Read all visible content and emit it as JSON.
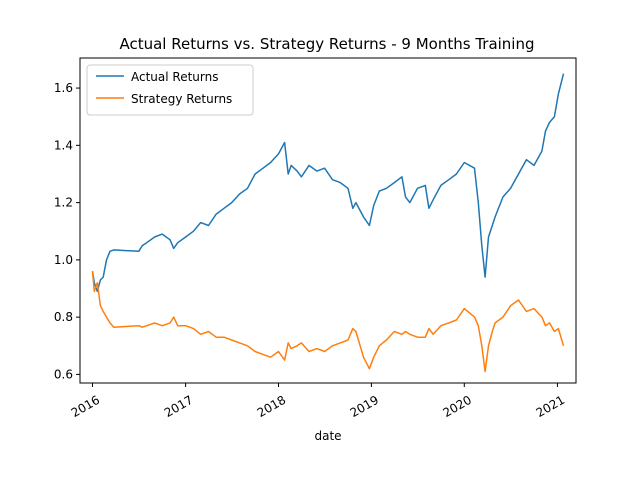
{
  "chart_data": {
    "type": "line",
    "title": "Actual Returns vs. Strategy Returns - 9 Months Training",
    "xlabel": "date",
    "ylabel": "",
    "x_ticks": [
      "2016",
      "2017",
      "2018",
      "2019",
      "2020",
      "2021"
    ],
    "y_ticks": [
      "0.6",
      "0.8",
      "1.0",
      "1.2",
      "1.4",
      "1.6"
    ],
    "xlim": [
      "2015-11-13",
      "2021-03-15"
    ],
    "ylim": [
      0.57,
      1.705
    ],
    "grid": false,
    "legend_position": "top-left",
    "series": [
      {
        "name": "Actual Returns",
        "color": "#1f77b4",
        "points": [
          [
            "2016-01-01",
            0.96
          ],
          [
            "2016-01-08",
            0.92
          ],
          [
            "2016-01-20",
            0.89
          ],
          [
            "2016-02-01",
            0.93
          ],
          [
            "2016-02-12",
            0.94
          ],
          [
            "2016-02-25",
            1.0
          ],
          [
            "2016-03-10",
            1.03
          ],
          [
            "2016-03-25",
            1.035
          ],
          [
            "2016-07-01",
            1.03
          ],
          [
            "2016-07-15",
            1.05
          ],
          [
            "2016-08-01",
            1.06
          ],
          [
            "2016-09-01",
            1.08
          ],
          [
            "2016-10-01",
            1.09
          ],
          [
            "2016-11-01",
            1.07
          ],
          [
            "2016-11-15",
            1.04
          ],
          [
            "2016-12-01",
            1.06
          ],
          [
            "2017-01-01",
            1.08
          ],
          [
            "2017-02-01",
            1.1
          ],
          [
            "2017-03-01",
            1.13
          ],
          [
            "2017-04-01",
            1.12
          ],
          [
            "2017-05-01",
            1.16
          ],
          [
            "2017-06-01",
            1.18
          ],
          [
            "2017-07-01",
            1.2
          ],
          [
            "2017-08-01",
            1.23
          ],
          [
            "2017-09-01",
            1.25
          ],
          [
            "2017-10-01",
            1.3
          ],
          [
            "2017-11-01",
            1.32
          ],
          [
            "2017-12-01",
            1.34
          ],
          [
            "2018-01-01",
            1.37
          ],
          [
            "2018-01-25",
            1.41
          ],
          [
            "2018-02-08",
            1.3
          ],
          [
            "2018-02-20",
            1.33
          ],
          [
            "2018-03-15",
            1.31
          ],
          [
            "2018-04-01",
            1.29
          ],
          [
            "2018-05-01",
            1.33
          ],
          [
            "2018-06-01",
            1.31
          ],
          [
            "2018-07-01",
            1.32
          ],
          [
            "2018-08-01",
            1.28
          ],
          [
            "2018-09-01",
            1.27
          ],
          [
            "2018-10-01",
            1.25
          ],
          [
            "2018-10-20",
            1.18
          ],
          [
            "2018-11-01",
            1.2
          ],
          [
            "2018-12-01",
            1.15
          ],
          [
            "2018-12-24",
            1.12
          ],
          [
            "2019-01-10",
            1.19
          ],
          [
            "2019-02-01",
            1.24
          ],
          [
            "2019-03-01",
            1.25
          ],
          [
            "2019-04-01",
            1.27
          ],
          [
            "2019-05-01",
            1.29
          ],
          [
            "2019-05-15",
            1.22
          ],
          [
            "2019-06-01",
            1.2
          ],
          [
            "2019-07-01",
            1.25
          ],
          [
            "2019-08-01",
            1.26
          ],
          [
            "2019-08-15",
            1.18
          ],
          [
            "2019-09-01",
            1.21
          ],
          [
            "2019-10-01",
            1.26
          ],
          [
            "2019-11-01",
            1.28
          ],
          [
            "2019-12-01",
            1.3
          ],
          [
            "2020-01-01",
            1.34
          ],
          [
            "2020-02-10",
            1.32
          ],
          [
            "2020-02-25",
            1.2
          ],
          [
            "2020-03-10",
            1.05
          ],
          [
            "2020-03-23",
            0.94
          ],
          [
            "2020-04-05",
            1.08
          ],
          [
            "2020-04-20",
            1.12
          ],
          [
            "2020-05-01",
            1.15
          ],
          [
            "2020-06-01",
            1.22
          ],
          [
            "2020-07-01",
            1.25
          ],
          [
            "2020-08-01",
            1.3
          ],
          [
            "2020-09-01",
            1.35
          ],
          [
            "2020-10-01",
            1.33
          ],
          [
            "2020-11-01",
            1.38
          ],
          [
            "2020-11-15",
            1.45
          ],
          [
            "2020-12-01",
            1.48
          ],
          [
            "2020-12-20",
            1.5
          ],
          [
            "2021-01-05",
            1.58
          ],
          [
            "2021-01-25",
            1.65
          ]
        ]
      },
      {
        "name": "Strategy Returns",
        "color": "#ff7f0e",
        "points": [
          [
            "2016-01-01",
            0.96
          ],
          [
            "2016-01-08",
            0.89
          ],
          [
            "2016-01-20",
            0.92
          ],
          [
            "2016-02-01",
            0.84
          ],
          [
            "2016-02-12",
            0.82
          ],
          [
            "2016-02-25",
            0.8
          ],
          [
            "2016-03-10",
            0.78
          ],
          [
            "2016-03-25",
            0.765
          ],
          [
            "2016-07-01",
            0.77
          ],
          [
            "2016-07-15",
            0.765
          ],
          [
            "2016-08-01",
            0.77
          ],
          [
            "2016-09-01",
            0.78
          ],
          [
            "2016-10-01",
            0.77
          ],
          [
            "2016-11-01",
            0.78
          ],
          [
            "2016-11-15",
            0.8
          ],
          [
            "2016-12-01",
            0.77
          ],
          [
            "2017-01-01",
            0.77
          ],
          [
            "2017-02-01",
            0.76
          ],
          [
            "2017-03-01",
            0.74
          ],
          [
            "2017-04-01",
            0.75
          ],
          [
            "2017-05-01",
            0.73
          ],
          [
            "2017-06-01",
            0.73
          ],
          [
            "2017-07-01",
            0.72
          ],
          [
            "2017-08-01",
            0.71
          ],
          [
            "2017-09-01",
            0.7
          ],
          [
            "2017-10-01",
            0.68
          ],
          [
            "2017-11-01",
            0.67
          ],
          [
            "2017-12-01",
            0.66
          ],
          [
            "2018-01-01",
            0.68
          ],
          [
            "2018-01-25",
            0.65
          ],
          [
            "2018-02-08",
            0.71
          ],
          [
            "2018-02-20",
            0.69
          ],
          [
            "2018-03-15",
            0.7
          ],
          [
            "2018-04-01",
            0.71
          ],
          [
            "2018-05-01",
            0.68
          ],
          [
            "2018-06-01",
            0.69
          ],
          [
            "2018-07-01",
            0.68
          ],
          [
            "2018-08-01",
            0.7
          ],
          [
            "2018-09-01",
            0.71
          ],
          [
            "2018-10-01",
            0.72
          ],
          [
            "2018-10-20",
            0.76
          ],
          [
            "2018-11-01",
            0.75
          ],
          [
            "2018-12-01",
            0.66
          ],
          [
            "2018-12-24",
            0.62
          ],
          [
            "2019-01-10",
            0.66
          ],
          [
            "2019-02-01",
            0.7
          ],
          [
            "2019-03-01",
            0.72
          ],
          [
            "2019-04-01",
            0.75
          ],
          [
            "2019-05-01",
            0.74
          ],
          [
            "2019-05-15",
            0.75
          ],
          [
            "2019-06-01",
            0.74
          ],
          [
            "2019-07-01",
            0.73
          ],
          [
            "2019-08-01",
            0.73
          ],
          [
            "2019-08-15",
            0.76
          ],
          [
            "2019-09-01",
            0.74
          ],
          [
            "2019-10-01",
            0.77
          ],
          [
            "2019-11-01",
            0.78
          ],
          [
            "2019-12-01",
            0.79
          ],
          [
            "2020-01-01",
            0.83
          ],
          [
            "2020-02-10",
            0.8
          ],
          [
            "2020-02-25",
            0.77
          ],
          [
            "2020-03-10",
            0.7
          ],
          [
            "2020-03-23",
            0.61
          ],
          [
            "2020-04-05",
            0.7
          ],
          [
            "2020-04-20",
            0.75
          ],
          [
            "2020-05-01",
            0.78
          ],
          [
            "2020-06-01",
            0.8
          ],
          [
            "2020-07-01",
            0.84
          ],
          [
            "2020-08-01",
            0.86
          ],
          [
            "2020-09-01",
            0.82
          ],
          [
            "2020-10-01",
            0.83
          ],
          [
            "2020-11-01",
            0.8
          ],
          [
            "2020-11-15",
            0.77
          ],
          [
            "2020-12-01",
            0.78
          ],
          [
            "2020-12-20",
            0.75
          ],
          [
            "2021-01-05",
            0.76
          ],
          [
            "2021-01-25",
            0.7
          ]
        ]
      }
    ]
  }
}
